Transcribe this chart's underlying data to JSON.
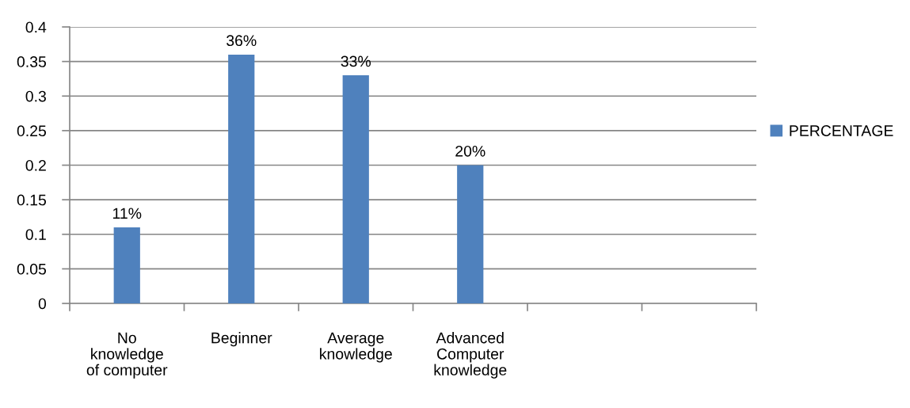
{
  "chart_data": {
    "type": "bar",
    "categories": [
      "No\nknowledge\nof computer",
      "Beginner",
      "Average\nknowledge",
      "Advanced\nComputer\nknowledge",
      null,
      null
    ],
    "series": [
      {
        "name": "PERCENTAGE",
        "color": "#4f81bd",
        "values": [
          0.11,
          0.36,
          0.33,
          0.2,
          null,
          null
        ],
        "value_labels": [
          "11%",
          "36%",
          "33%",
          "20%",
          null,
          null
        ]
      }
    ],
    "ylim": [
      0,
      0.4
    ],
    "yticks": [
      0,
      0.05,
      0.1,
      0.15,
      0.2,
      0.25,
      0.3,
      0.35,
      0.4
    ],
    "grid": "y",
    "legend": "right"
  }
}
